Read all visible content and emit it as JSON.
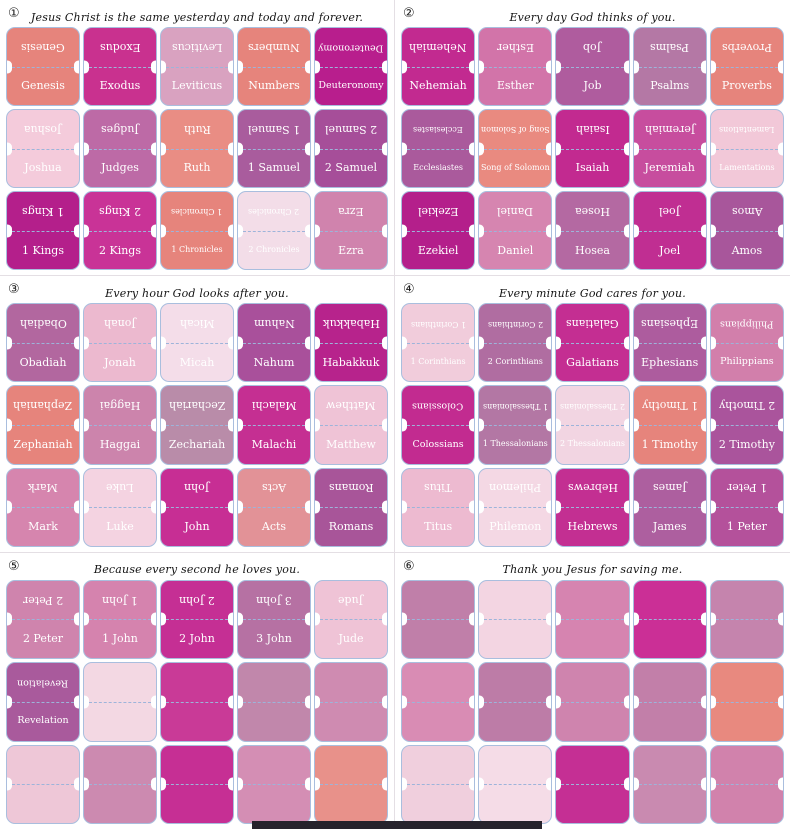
{
  "sheet": {
    "background": "#ffffff",
    "tab_border_color": "#a9bede",
    "fold_line_color": "#9db4da",
    "divider_color": "#e4dfe4",
    "label_color": "#ffffff",
    "header_text_color": "#141414",
    "bottom_strip_color": "#26232c"
  },
  "panels": [
    {
      "number": "①",
      "title": "Jesus Christ is the same yesterday and today and forever.",
      "tabs": [
        {
          "label": "Genesis",
          "color": "#e6847c"
        },
        {
          "label": "Exodus",
          "color": "#c9318f"
        },
        {
          "label": "Leviticus",
          "color": "#d9a2c0"
        },
        {
          "label": "Numbers",
          "color": "#e6847c"
        },
        {
          "label": "Deuteronomy",
          "color": "#b81e8d"
        },
        {
          "label": "Joshua",
          "color": "#f4cbdb"
        },
        {
          "label": "Judges",
          "color": "#bd6aa6"
        },
        {
          "label": "Ruth",
          "color": "#e98d84"
        },
        {
          "label": "1 Samuel",
          "color": "#a95c9d"
        },
        {
          "label": "2 Samuel",
          "color": "#a64e99"
        },
        {
          "label": "1 Kings",
          "color": "#b41f8b"
        },
        {
          "label": "2 Kings",
          "color": "#c93397"
        },
        {
          "label": "1 Chronicles",
          "color": "#e6847c"
        },
        {
          "label": "2 Chronicles",
          "color": "#f3dde8"
        },
        {
          "label": "Ezra",
          "color": "#d083ad"
        }
      ]
    },
    {
      "number": "②",
      "title": "Every day God thinks of you.",
      "tabs": [
        {
          "label": "Nehemiah",
          "color": "#c22a90"
        },
        {
          "label": "Esther",
          "color": "#d274a9"
        },
        {
          "label": "Job",
          "color": "#af5c9e"
        },
        {
          "label": "Psalms",
          "color": "#b478a5"
        },
        {
          "label": "Proverbs",
          "color": "#e6847c"
        },
        {
          "label": "Ecclesiastes",
          "color": "#aa5a9c"
        },
        {
          "label": "Song of Solomon",
          "color": "#e98a80"
        },
        {
          "label": "Isaiah",
          "color": "#c22a90"
        },
        {
          "label": "Jeremiah",
          "color": "#c74d9e"
        },
        {
          "label": "Lamentations",
          "color": "#f2c8d8"
        },
        {
          "label": "Ezekiel",
          "color": "#b41f8b"
        },
        {
          "label": "Daniel",
          "color": "#d685b0"
        },
        {
          "label": "Hosea",
          "color": "#b469a2"
        },
        {
          "label": "Joel",
          "color": "#c02e92"
        },
        {
          "label": "Amos",
          "color": "#a8569b"
        }
      ]
    },
    {
      "number": "③",
      "title": "Every hour God looks after you.",
      "tabs": [
        {
          "label": "Obadiah",
          "color": "#b2679f"
        },
        {
          "label": "Jonah",
          "color": "#ecb9cf"
        },
        {
          "label": "Micah",
          "color": "#f4dde9"
        },
        {
          "label": "Nahum",
          "color": "#a9509b"
        },
        {
          "label": "Habakkuk",
          "color": "#b7238c"
        },
        {
          "label": "Zephaniah",
          "color": "#e6847c"
        },
        {
          "label": "Haggai",
          "color": "#cc84ac"
        },
        {
          "label": "Zechariah",
          "color": "#b98ca9"
        },
        {
          "label": "Malachi",
          "color": "#c52f92"
        },
        {
          "label": "Matthew",
          "color": "#efc3d6"
        },
        {
          "label": "Mark",
          "color": "#d685ae"
        },
        {
          "label": "Luke",
          "color": "#f4d3e1"
        },
        {
          "label": "John",
          "color": "#c72e94"
        },
        {
          "label": "Acts",
          "color": "#e29297"
        },
        {
          "label": "Romans",
          "color": "#a85599"
        }
      ]
    },
    {
      "number": "④",
      "title": "Every minute God cares for you.",
      "tabs": [
        {
          "label": "1 Corinthians",
          "color": "#f1ccdb"
        },
        {
          "label": "2 Corinthians",
          "color": "#b06da1"
        },
        {
          "label": "Galatians",
          "color": "#c42e92"
        },
        {
          "label": "Ephesians",
          "color": "#ad5c9e"
        },
        {
          "label": "Philippians",
          "color": "#d27fab"
        },
        {
          "label": "Colossians",
          "color": "#c22b90"
        },
        {
          "label": "1 Thessalonians",
          "color": "#b377a4"
        },
        {
          "label": "2 Thessalonians",
          "color": "#f2d5e2"
        },
        {
          "label": "1 Timothy",
          "color": "#e6847c"
        },
        {
          "label": "2 Timothy",
          "color": "#aa549c"
        },
        {
          "label": "Titus",
          "color": "#edbad0"
        },
        {
          "label": "Philemon",
          "color": "#f4d8e4"
        },
        {
          "label": "Hebrews",
          "color": "#c32f92"
        },
        {
          "label": "James",
          "color": "#ad5f9f"
        },
        {
          "label": "1 Peter",
          "color": "#b4519b"
        }
      ]
    },
    {
      "number": "⑤",
      "title": "Because every second he loves you.",
      "tabs": [
        {
          "label": "2 Peter",
          "color": "#cf84ad"
        },
        {
          "label": "1 John",
          "color": "#d583ae"
        },
        {
          "label": "2 John",
          "color": "#c52f94"
        },
        {
          "label": "3 John",
          "color": "#b671a3"
        },
        {
          "label": "Jude",
          "color": "#efc3d6"
        },
        {
          "label": "Revelation",
          "color": "#a95a9c"
        },
        {
          "label": "",
          "color": "#f3d8e3"
        },
        {
          "label": "",
          "color": "#c93a97"
        },
        {
          "label": "",
          "color": "#c187ab"
        },
        {
          "label": "",
          "color": "#cf8bb1"
        },
        {
          "label": "",
          "color": "#eec7d7"
        },
        {
          "label": "",
          "color": "#cc8ab0"
        },
        {
          "label": "",
          "color": "#c62f94"
        },
        {
          "label": "",
          "color": "#d48eb4"
        },
        {
          "label": "",
          "color": "#e8918a"
        }
      ]
    },
    {
      "number": "⑥",
      "title": "Thank you Jesus for saving me.",
      "tabs": [
        {
          "label": "",
          "color": "#c07fa9"
        },
        {
          "label": "",
          "color": "#f3d5e2"
        },
        {
          "label": "",
          "color": "#d684b0"
        },
        {
          "label": "",
          "color": "#cb2f96"
        },
        {
          "label": "",
          "color": "#c584ad"
        },
        {
          "label": "",
          "color": "#d98cb4"
        },
        {
          "label": "",
          "color": "#bd7ca7"
        },
        {
          "label": "",
          "color": "#cf84ae"
        },
        {
          "label": "",
          "color": "#c27fa9"
        },
        {
          "label": "",
          "color": "#e8897f"
        },
        {
          "label": "",
          "color": "#f0cfdd"
        },
        {
          "label": "",
          "color": "#f5dce7"
        },
        {
          "label": "",
          "color": "#c52f94"
        },
        {
          "label": "",
          "color": "#c98ab0"
        },
        {
          "label": "",
          "color": "#d182ac"
        }
      ]
    }
  ]
}
